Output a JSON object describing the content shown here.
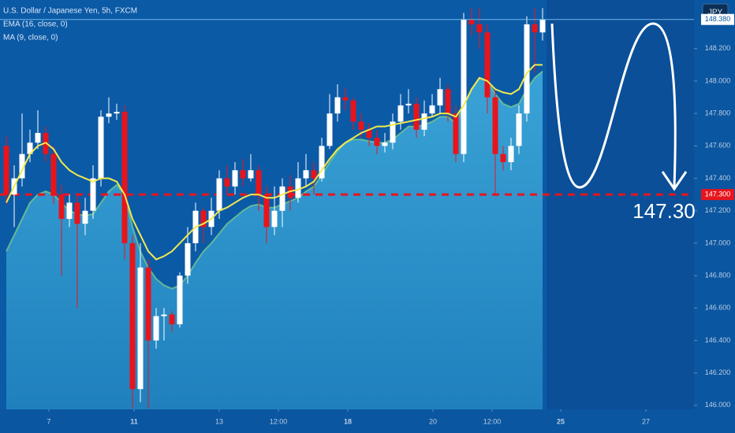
{
  "chart_data": {
    "type": "candlestick",
    "title": "U.S. Dollar / Japanese Yen, 5h, FXCM",
    "currency_button": "JPY",
    "up_color": "#ffffff",
    "down_color": "#e8141c",
    "open": [
      147.6,
      147.3,
      147.4,
      147.55,
      147.62,
      147.68,
      147.55,
      147.3,
      147.15,
      147.25,
      147.12,
      147.2,
      147.4,
      147.78,
      147.8,
      147.81,
      147.0,
      146.1,
      146.85,
      146.4,
      146.55,
      146.56,
      146.5,
      146.8,
      147.0,
      147.2,
      147.1,
      147.2,
      147.4,
      147.35,
      147.45,
      147.4,
      147.45,
      147.3,
      147.1,
      147.2,
      147.35,
      147.28,
      147.4,
      147.45,
      147.4,
      147.6,
      147.8,
      147.9,
      147.88,
      147.75,
      147.7,
      147.65,
      147.6,
      147.62,
      147.75,
      147.85,
      147.86,
      147.7,
      147.8,
      147.85,
      147.95,
      147.8,
      147.55,
      148.38,
      148.35,
      148.3,
      147.9,
      147.55,
      147.5,
      147.6,
      147.8,
      148.35,
      148.3
    ],
    "high": [
      147.66,
      147.48,
      147.8,
      147.7,
      147.82,
      147.72,
      147.6,
      147.36,
      147.3,
      147.3,
      147.28,
      147.48,
      147.82,
      147.9,
      147.86,
      147.85,
      147.05,
      147.0,
      146.9,
      146.6,
      146.6,
      146.58,
      146.82,
      147.1,
      147.25,
      147.22,
      147.28,
      147.45,
      147.48,
      147.5,
      147.52,
      147.55,
      147.48,
      147.35,
      147.35,
      147.4,
      147.42,
      147.5,
      147.55,
      147.5,
      147.65,
      147.92,
      147.98,
      147.96,
      147.9,
      147.8,
      147.74,
      147.7,
      147.68,
      147.8,
      147.92,
      147.95,
      147.9,
      147.88,
      147.92,
      148.02,
      147.98,
      147.85,
      148.42,
      148.45,
      148.45,
      148.35,
      147.95,
      147.6,
      147.65,
      147.85,
      148.4,
      148.45,
      148.45
    ],
    "low": [
      147.24,
      147.1,
      147.35,
      147.5,
      147.58,
      147.5,
      147.24,
      146.8,
      147.1,
      146.6,
      147.05,
      147.15,
      147.35,
      147.74,
      147.76,
      146.9,
      145.98,
      146.02,
      145.98,
      146.35,
      146.4,
      146.45,
      146.48,
      146.75,
      146.95,
      147.0,
      147.05,
      147.15,
      147.3,
      147.3,
      147.35,
      147.38,
      147.2,
      147.0,
      147.05,
      147.1,
      147.2,
      147.25,
      147.35,
      147.3,
      147.38,
      147.58,
      147.75,
      147.82,
      147.7,
      147.65,
      147.6,
      147.55,
      147.56,
      147.58,
      147.7,
      147.8,
      147.65,
      147.66,
      147.78,
      147.8,
      147.75,
      147.5,
      147.5,
      148.28,
      148.2,
      147.8,
      147.3,
      147.45,
      147.45,
      147.55,
      147.75,
      148.05,
      148.25
    ],
    "close": [
      147.3,
      147.4,
      147.55,
      147.62,
      147.68,
      147.55,
      147.3,
      147.15,
      147.25,
      147.12,
      147.2,
      147.4,
      147.78,
      147.8,
      147.81,
      147.0,
      146.1,
      146.85,
      146.4,
      146.55,
      146.56,
      146.5,
      146.8,
      147.0,
      147.2,
      147.1,
      147.2,
      147.4,
      147.35,
      147.45,
      147.4,
      147.45,
      147.3,
      147.1,
      147.2,
      147.35,
      147.28,
      147.4,
      147.45,
      147.4,
      147.6,
      147.8,
      147.9,
      147.88,
      147.75,
      147.7,
      147.65,
      147.6,
      147.62,
      147.75,
      147.85,
      147.86,
      147.7,
      147.8,
      147.85,
      147.95,
      147.8,
      147.55,
      148.38,
      148.35,
      148.3,
      147.9,
      147.55,
      147.5,
      147.6,
      147.8,
      148.35,
      148.3,
      148.38
    ],
    "series": [
      {
        "name": "EMA (16, close, 0)",
        "color": "#7fd18a",
        "fill": "#2e94c9",
        "values": [
          146.95,
          147.05,
          147.15,
          147.25,
          147.3,
          147.32,
          147.3,
          147.25,
          147.2,
          147.18,
          147.17,
          147.18,
          147.25,
          147.32,
          147.36,
          147.3,
          147.1,
          146.95,
          146.85,
          146.78,
          146.74,
          146.72,
          146.74,
          146.8,
          146.88,
          146.95,
          147.0,
          147.06,
          147.12,
          147.16,
          147.2,
          147.23,
          147.24,
          147.22,
          147.22,
          147.24,
          147.26,
          147.28,
          147.32,
          147.35,
          147.42,
          147.5,
          147.57,
          147.62,
          147.64,
          147.64,
          147.63,
          147.62,
          147.62,
          147.64,
          147.68,
          147.72,
          147.72,
          147.73,
          147.75,
          147.78,
          147.78,
          147.74,
          147.85,
          147.95,
          148.02,
          148.0,
          147.92,
          147.86,
          147.84,
          147.86,
          147.95,
          148.02,
          148.06
        ]
      },
      {
        "name": "MA (9, close, 0)",
        "color": "#f2e94e",
        "values": [
          147.25,
          147.35,
          147.45,
          147.55,
          147.6,
          147.62,
          147.58,
          147.5,
          147.45,
          147.42,
          147.4,
          147.38,
          147.4,
          147.4,
          147.38,
          147.3,
          147.15,
          147.05,
          146.95,
          146.9,
          146.92,
          146.95,
          147.0,
          147.05,
          147.1,
          147.12,
          147.15,
          147.2,
          147.22,
          147.25,
          147.28,
          147.3,
          147.3,
          147.28,
          147.28,
          147.3,
          147.32,
          147.33,
          147.35,
          147.38,
          147.45,
          147.52,
          147.58,
          147.62,
          147.65,
          147.68,
          147.7,
          147.72,
          147.72,
          147.73,
          147.74,
          147.75,
          147.76,
          147.77,
          147.78,
          147.8,
          147.8,
          147.78,
          147.85,
          147.95,
          148.02,
          148.0,
          147.95,
          147.93,
          147.92,
          147.95,
          148.05,
          148.1,
          148.1
        ]
      }
    ],
    "ylim": [
      145.975,
      148.5
    ],
    "yticks": [
      {
        "value": 146.0,
        "label": "146.000"
      },
      {
        "value": 146.2,
        "label": "146.200"
      },
      {
        "value": 146.4,
        "label": "146.400"
      },
      {
        "value": 146.6,
        "label": "146.600"
      },
      {
        "value": 146.8,
        "label": "146.800"
      },
      {
        "value": 147.0,
        "label": "147.000"
      },
      {
        "value": 147.2,
        "label": "147.200"
      },
      {
        "value": 147.4,
        "label": "147.400"
      },
      {
        "value": 147.6,
        "label": "147.600"
      },
      {
        "value": 147.8,
        "label": "147.800"
      },
      {
        "value": 148.0,
        "label": "148.000"
      },
      {
        "value": 148.2,
        "label": "148.200"
      }
    ],
    "xlim": [
      -0.8,
      87.2
    ],
    "xticks": [
      {
        "value": 5.4,
        "label": "7"
      },
      {
        "value": 16.2,
        "label": "11"
      },
      {
        "value": 27,
        "label": "13"
      },
      {
        "value": 34.5,
        "label": "12:00"
      },
      {
        "value": 43.3,
        "label": "18"
      },
      {
        "value": 54.1,
        "label": "20"
      },
      {
        "value": 61.6,
        "label": "12:00"
      },
      {
        "value": 70.3,
        "label": "25"
      },
      {
        "value": 81.1,
        "label": "27"
      }
    ],
    "last_price": {
      "value": 148.38,
      "label": "148.380"
    },
    "target": {
      "value": 147.3,
      "label": "147.300",
      "annotation": "147.30"
    }
  }
}
